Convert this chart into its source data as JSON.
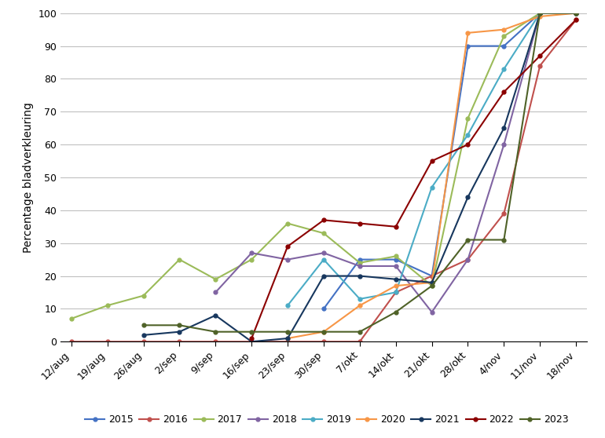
{
  "x_labels": [
    "12/aug",
    "19/aug",
    "26/aug",
    "2/sep",
    "9/sep",
    "16/sep",
    "23/sep",
    "30/sep",
    "7/okt",
    "14/okt",
    "21/okt",
    "28/okt",
    "4/nov",
    "11/nov",
    "18/nov"
  ],
  "ylabel": "Percentage bladverkleuring",
  "series": {
    "2015": {
      "color": "#4472C4",
      "values": [
        null,
        null,
        null,
        null,
        null,
        null,
        null,
        10,
        25,
        25,
        20,
        90,
        90,
        100,
        100
      ]
    },
    "2016": {
      "color": "#C0504D",
      "values": [
        0,
        0,
        0,
        0,
        0,
        0,
        0,
        0,
        0,
        15,
        20,
        25,
        39,
        84,
        98
      ]
    },
    "2017": {
      "color": "#9BBB59",
      "values": [
        7,
        11,
        14,
        25,
        19,
        25,
        36,
        33,
        24,
        26,
        17,
        68,
        93,
        100,
        100
      ]
    },
    "2018": {
      "color": "#8064A2",
      "values": [
        null,
        null,
        null,
        null,
        15,
        27,
        25,
        27,
        23,
        23,
        9,
        25,
        60,
        100,
        100
      ]
    },
    "2019": {
      "color": "#4BACC6",
      "values": [
        null,
        null,
        null,
        null,
        null,
        null,
        11,
        25,
        13,
        15,
        47,
        63,
        83,
        100,
        100
      ]
    },
    "2020": {
      "color": "#F79646",
      "values": [
        null,
        null,
        null,
        null,
        null,
        null,
        1,
        3,
        11,
        17,
        18,
        94,
        95,
        99,
        100
      ]
    },
    "2021": {
      "color": "#17375E",
      "values": [
        null,
        null,
        2,
        3,
        8,
        0,
        1,
        20,
        20,
        19,
        18,
        44,
        65,
        100,
        100
      ]
    },
    "2022": {
      "color": "#8B0000",
      "values": [
        null,
        null,
        null,
        null,
        null,
        1,
        29,
        37,
        36,
        35,
        55,
        60,
        76,
        87,
        98
      ]
    },
    "2023": {
      "color": "#4F6228",
      "values": [
        null,
        null,
        5,
        5,
        3,
        3,
        3,
        3,
        3,
        9,
        17,
        31,
        31,
        100,
        100
      ]
    }
  },
  "ylim": [
    0,
    100
  ],
  "yticks": [
    0,
    10,
    20,
    30,
    40,
    50,
    60,
    70,
    80,
    90,
    100
  ],
  "legend_order": [
    "2015",
    "2016",
    "2017",
    "2018",
    "2019",
    "2020",
    "2021",
    "2022",
    "2023"
  ],
  "background_color": "#ffffff",
  "grid_color": "#c0c0c0"
}
